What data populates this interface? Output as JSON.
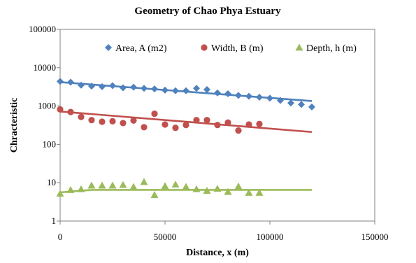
{
  "chart_data": {
    "type": "scatter",
    "title": "Geometry of Chao Phya Estuary",
    "xlabel": "Distance, x (m)",
    "ylabel": "Chracteristic",
    "xlim": [
      0,
      150000
    ],
    "ylim": [
      1,
      100000
    ],
    "yscale": "log",
    "grid": false,
    "legend_position": "top",
    "x_ticks": [
      "0",
      "50000",
      "100000",
      "150000"
    ],
    "y_ticks": [
      "1",
      "10",
      "100",
      "1000",
      "10000",
      "100000"
    ],
    "series": [
      {
        "name": "Area, A (m2)",
        "marker": "diamond",
        "color": "#4F81BD",
        "x": [
          0,
          5000,
          10000,
          15000,
          20000,
          25000,
          30000,
          35000,
          40000,
          45000,
          50000,
          55000,
          60000,
          65000,
          70000,
          75000,
          80000,
          85000,
          90000,
          95000,
          100000,
          105000,
          110000,
          115000,
          120000
        ],
        "y": [
          4400,
          4200,
          3500,
          3300,
          3200,
          3400,
          3000,
          3100,
          2900,
          2800,
          2600,
          2500,
          2500,
          2900,
          2700,
          2200,
          2100,
          1900,
          1800,
          1700,
          1600,
          1400,
          1200,
          1100,
          950
        ],
        "trend": {
          "x": [
            0,
            120000
          ],
          "y": [
            4200,
            1350
          ]
        }
      },
      {
        "name": "Width, B (m)",
        "marker": "circle",
        "color": "#C0504D",
        "x": [
          0,
          5000,
          10000,
          15000,
          20000,
          25000,
          30000,
          35000,
          40000,
          45000,
          50000,
          55000,
          60000,
          65000,
          70000,
          75000,
          80000,
          85000,
          90000,
          95000
        ],
        "y": [
          820,
          700,
          520,
          430,
          390,
          400,
          360,
          420,
          280,
          630,
          330,
          270,
          320,
          430,
          430,
          320,
          370,
          230,
          330,
          340
        ],
        "trend": {
          "x": [
            0,
            120000
          ],
          "y": [
            720,
            210
          ]
        }
      },
      {
        "name": "Depth, h (m)",
        "marker": "triangle",
        "color": "#9BBB59",
        "x": [
          0,
          5000,
          10000,
          15000,
          20000,
          25000,
          30000,
          35000,
          40000,
          45000,
          50000,
          55000,
          60000,
          65000,
          70000,
          75000,
          80000,
          85000,
          90000,
          95000
        ],
        "y": [
          5.2,
          6.5,
          6.8,
          8.5,
          8.5,
          8.5,
          8.8,
          7.8,
          10.5,
          4.8,
          8.2,
          9.0,
          7.8,
          6.8,
          6.2,
          7.0,
          5.8,
          8.0,
          5.5,
          5.5
        ],
        "trend": {
          "x": [
            0,
            15000,
            120000
          ],
          "y": [
            5.6,
            6.5,
            6.5
          ]
        }
      }
    ]
  }
}
